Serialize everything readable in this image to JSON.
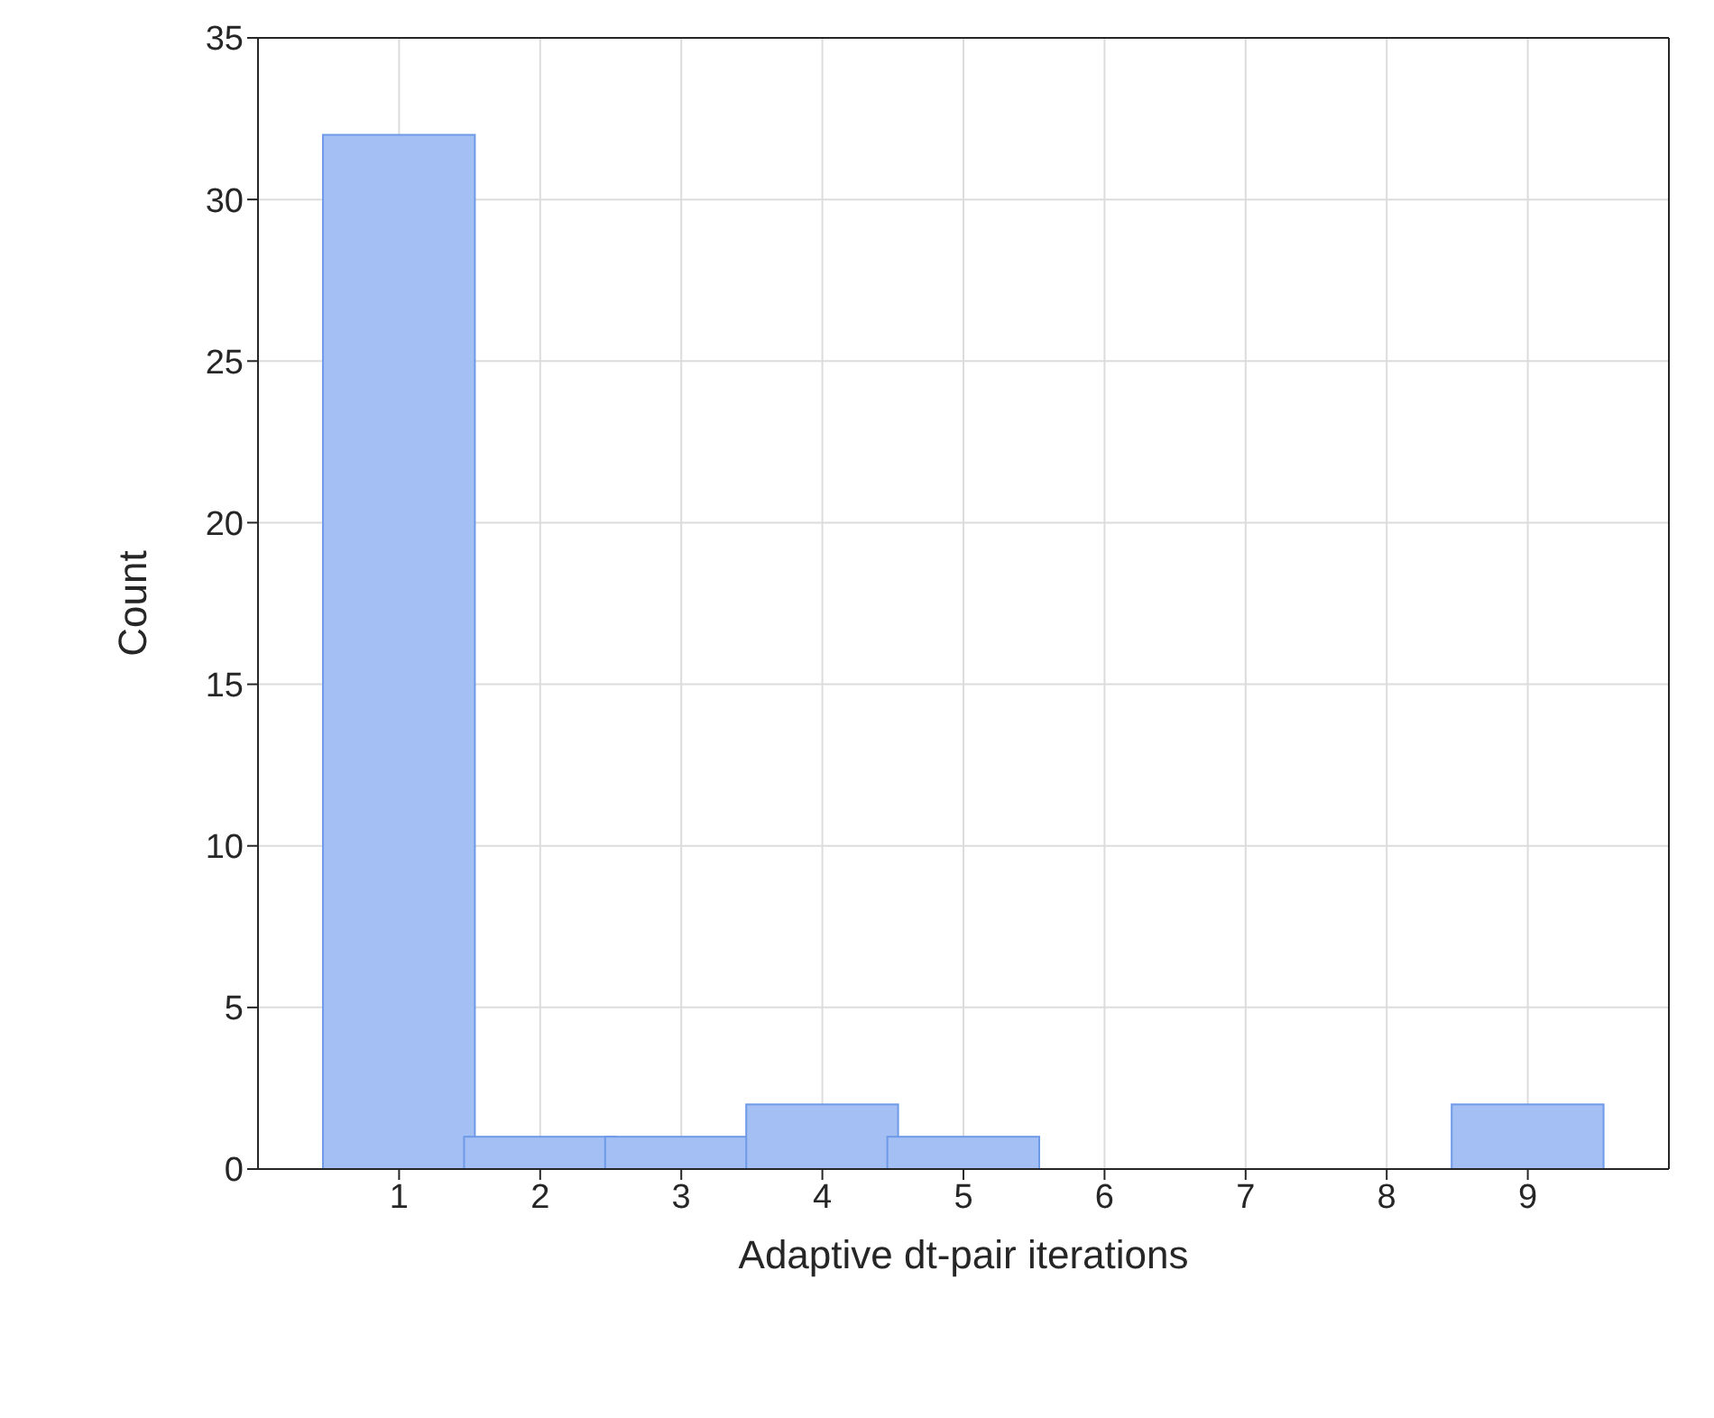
{
  "chart_data": {
    "type": "histogram",
    "xlabel": "Adaptive dt-pair iterations",
    "ylabel": "Count",
    "bins": [
      0.5,
      1.5,
      2.5,
      3.5,
      4.5,
      5.5,
      6.5,
      7.5,
      8.5,
      9.5
    ],
    "values": [
      32,
      1,
      1,
      2,
      1,
      0,
      0,
      0,
      2
    ],
    "color": "#a3bff3",
    "xlim": [
      0,
      10
    ],
    "xticks": [
      1,
      2,
      3,
      4,
      5,
      6,
      7,
      8,
      9
    ],
    "ylim": [
      0,
      35
    ],
    "yticks": [
      0,
      5,
      10,
      15,
      20,
      25,
      30,
      35
    ],
    "grid": true
  }
}
